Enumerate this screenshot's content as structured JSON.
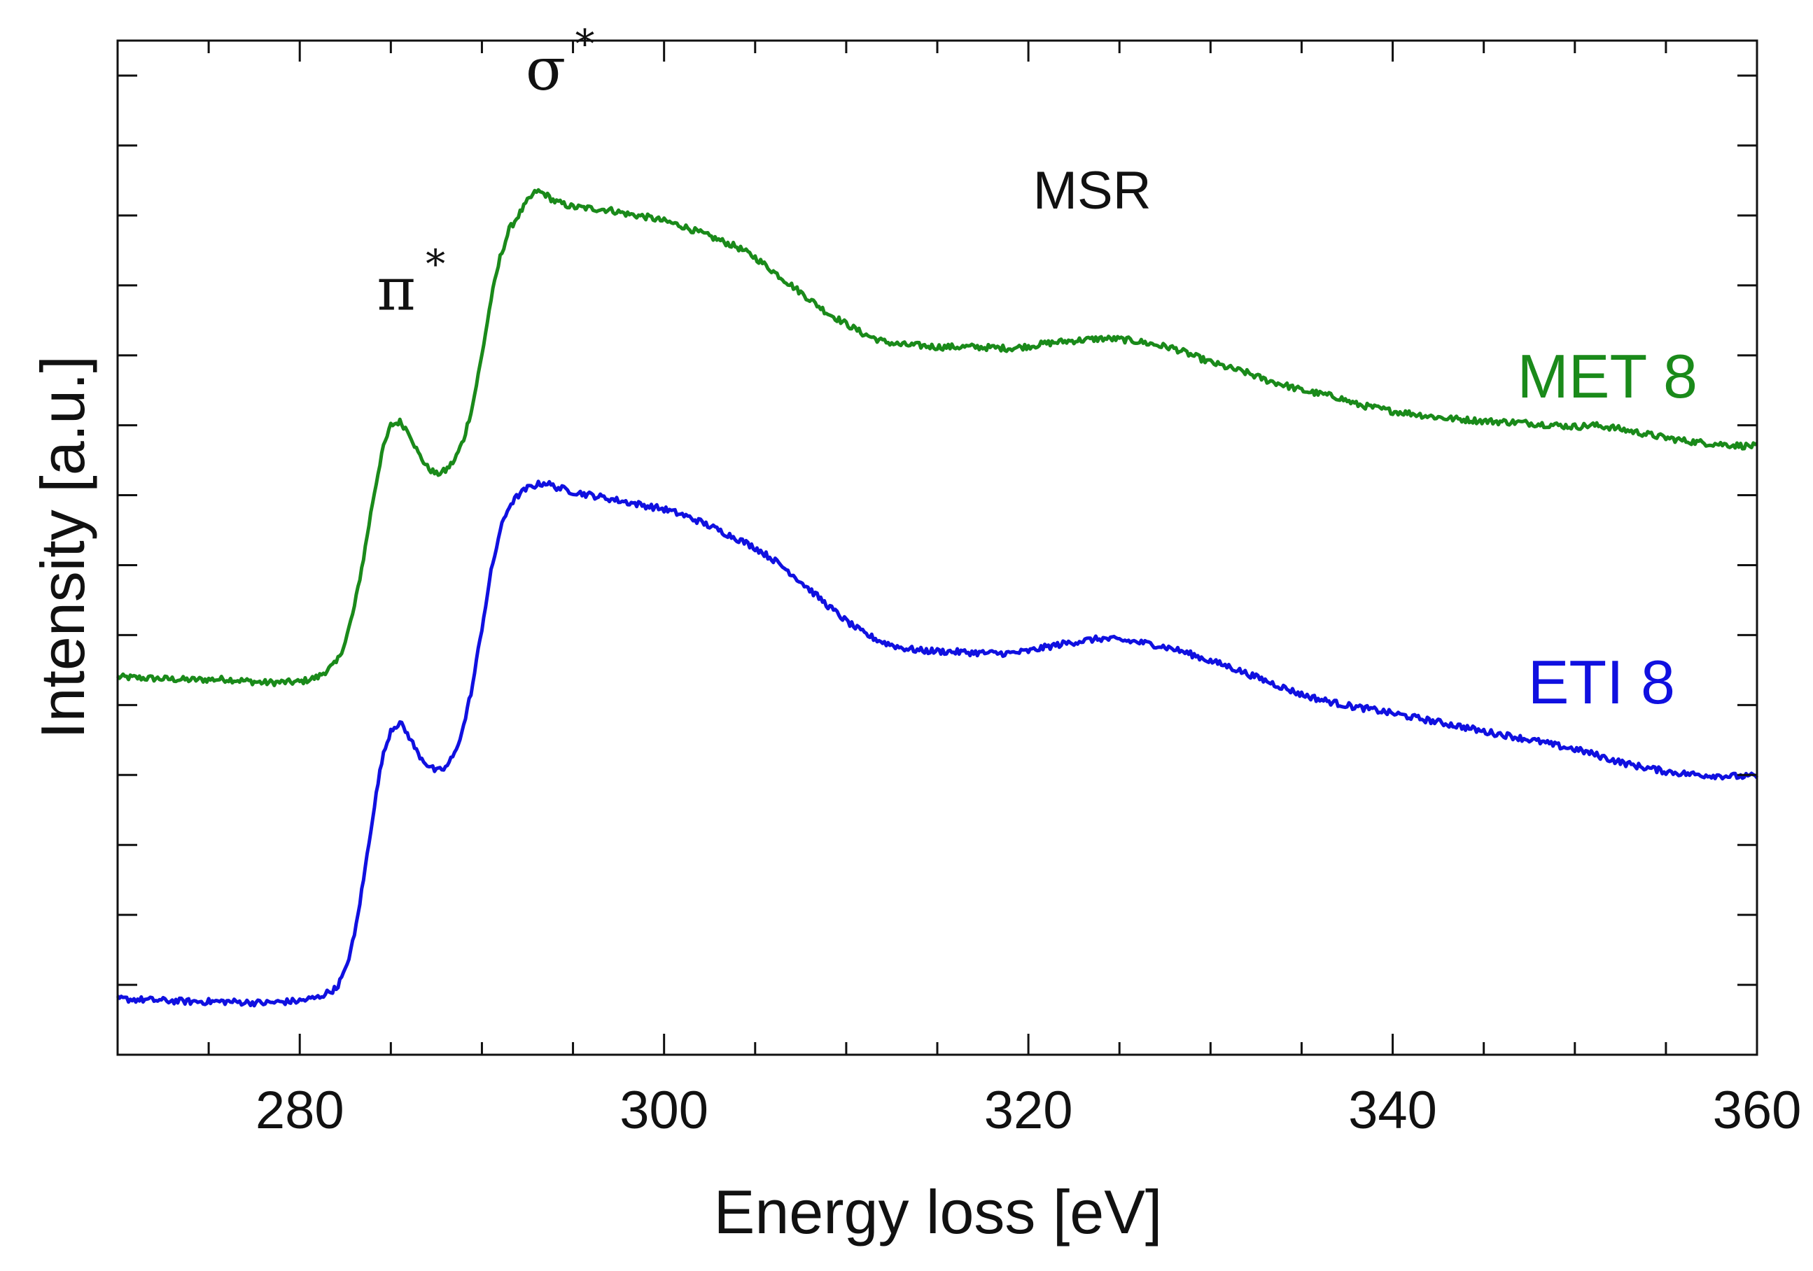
{
  "chart_data": {
    "type": "line",
    "title": "",
    "xlabel": "Energy loss [eV]",
    "ylabel": "Intensity [a.u.]",
    "xlim": [
      270,
      360
    ],
    "ylim": [
      0,
      14.5
    ],
    "x_ticks": [
      280,
      300,
      320,
      340,
      360
    ],
    "x_minor_step": 5,
    "y_ticks": [
      1,
      2,
      3,
      4,
      5,
      6,
      7,
      8,
      9,
      10,
      11,
      12,
      13,
      14
    ],
    "y_tick_labels_shown": false,
    "grid": false,
    "annotations": [
      {
        "name": "pi-star-label",
        "symbol": "π",
        "superscript": "*",
        "x": 285.3,
        "y": 10.65
      },
      {
        "name": "sigma-star-label",
        "symbol": "σ",
        "superscript": "*",
        "x": 293.5,
        "y": 13.8
      },
      {
        "name": "msr-label",
        "text": "MSR",
        "x": 323.5,
        "y": 12.1
      }
    ],
    "series": [
      {
        "name": "MET 8",
        "color": "#1a8a1a",
        "label_position": "right, above curve",
        "points": [
          [
            270.0,
            5.4
          ],
          [
            272.0,
            5.38
          ],
          [
            274.0,
            5.36
          ],
          [
            276.0,
            5.37
          ],
          [
            278.0,
            5.32
          ],
          [
            280.0,
            5.33
          ],
          [
            281.0,
            5.4
          ],
          [
            282.0,
            5.6
          ],
          [
            282.5,
            5.9
          ],
          [
            283.0,
            6.4
          ],
          [
            283.5,
            7.1
          ],
          [
            284.0,
            7.9
          ],
          [
            284.5,
            8.6
          ],
          [
            285.0,
            9.0
          ],
          [
            285.5,
            9.05
          ],
          [
            286.0,
            8.9
          ],
          [
            286.5,
            8.6
          ],
          [
            287.0,
            8.4
          ],
          [
            287.5,
            8.3
          ],
          [
            288.0,
            8.35
          ],
          [
            288.5,
            8.5
          ],
          [
            289.0,
            8.8
          ],
          [
            289.5,
            9.3
          ],
          [
            290.0,
            10.0
          ],
          [
            290.5,
            10.8
          ],
          [
            291.0,
            11.4
          ],
          [
            291.5,
            11.8
          ],
          [
            292.0,
            12.0
          ],
          [
            292.5,
            12.2
          ],
          [
            293.0,
            12.35
          ],
          [
            293.5,
            12.3
          ],
          [
            294.0,
            12.2
          ],
          [
            295.0,
            12.12
          ],
          [
            296.0,
            12.1
          ],
          [
            297.0,
            12.08
          ],
          [
            298.0,
            12.02
          ],
          [
            299.0,
            11.98
          ],
          [
            300.0,
            11.92
          ],
          [
            301.0,
            11.85
          ],
          [
            302.0,
            11.75
          ],
          [
            303.0,
            11.65
          ],
          [
            304.0,
            11.55
          ],
          [
            305.0,
            11.4
          ],
          [
            306.0,
            11.2
          ],
          [
            307.0,
            11.0
          ],
          [
            308.0,
            10.8
          ],
          [
            309.0,
            10.6
          ],
          [
            310.0,
            10.45
          ],
          [
            311.0,
            10.3
          ],
          [
            312.0,
            10.2
          ],
          [
            313.0,
            10.15
          ],
          [
            314.0,
            10.14
          ],
          [
            315.0,
            10.12
          ],
          [
            316.0,
            10.12
          ],
          [
            317.0,
            10.12
          ],
          [
            318.0,
            10.11
          ],
          [
            319.0,
            10.1
          ],
          [
            320.0,
            10.13
          ],
          [
            321.0,
            10.17
          ],
          [
            322.0,
            10.2
          ],
          [
            323.0,
            10.22
          ],
          [
            324.0,
            10.24
          ],
          [
            325.0,
            10.23
          ],
          [
            326.0,
            10.2
          ],
          [
            327.0,
            10.15
          ],
          [
            328.0,
            10.1
          ],
          [
            329.0,
            10.0
          ],
          [
            330.0,
            9.9
          ],
          [
            331.0,
            9.82
          ],
          [
            332.0,
            9.75
          ],
          [
            333.0,
            9.65
          ],
          [
            334.0,
            9.58
          ],
          [
            335.0,
            9.5
          ],
          [
            336.0,
            9.45
          ],
          [
            337.0,
            9.4
          ],
          [
            338.0,
            9.3
          ],
          [
            339.0,
            9.25
          ],
          [
            340.0,
            9.2
          ],
          [
            341.0,
            9.17
          ],
          [
            342.0,
            9.13
          ],
          [
            343.0,
            9.1
          ],
          [
            344.0,
            9.08
          ],
          [
            345.0,
            9.06
          ],
          [
            346.0,
            9.05
          ],
          [
            347.0,
            9.04
          ],
          [
            348.0,
            9.02
          ],
          [
            349.0,
            9.0
          ],
          [
            350.0,
            8.98
          ],
          [
            351.0,
            9.0
          ],
          [
            352.0,
            8.97
          ],
          [
            353.0,
            8.92
          ],
          [
            354.0,
            8.87
          ],
          [
            355.0,
            8.82
          ],
          [
            356.0,
            8.78
          ],
          [
            357.0,
            8.75
          ],
          [
            358.0,
            8.73
          ],
          [
            359.0,
            8.71
          ],
          [
            360.0,
            8.7
          ]
        ]
      },
      {
        "name": "ETI 8",
        "color": "#1010e0",
        "label_position": "right, above curve",
        "points": [
          [
            270.0,
            0.8
          ],
          [
            272.0,
            0.78
          ],
          [
            274.0,
            0.76
          ],
          [
            276.0,
            0.76
          ],
          [
            278.0,
            0.74
          ],
          [
            280.0,
            0.77
          ],
          [
            281.0,
            0.82
          ],
          [
            282.0,
            0.95
          ],
          [
            282.5,
            1.2
          ],
          [
            283.0,
            1.7
          ],
          [
            283.5,
            2.5
          ],
          [
            284.0,
            3.4
          ],
          [
            284.5,
            4.2
          ],
          [
            285.0,
            4.65
          ],
          [
            285.5,
            4.75
          ],
          [
            286.0,
            4.55
          ],
          [
            286.5,
            4.3
          ],
          [
            287.0,
            4.15
          ],
          [
            287.5,
            4.05
          ],
          [
            288.0,
            4.1
          ],
          [
            288.5,
            4.3
          ],
          [
            289.0,
            4.7
          ],
          [
            289.5,
            5.3
          ],
          [
            290.0,
            6.1
          ],
          [
            290.5,
            6.9
          ],
          [
            291.0,
            7.5
          ],
          [
            291.5,
            7.85
          ],
          [
            292.0,
            8.0
          ],
          [
            292.5,
            8.1
          ],
          [
            293.0,
            8.15
          ],
          [
            293.5,
            8.18
          ],
          [
            294.0,
            8.12
          ],
          [
            295.0,
            8.05
          ],
          [
            296.0,
            8.0
          ],
          [
            297.0,
            7.95
          ],
          [
            298.0,
            7.9
          ],
          [
            299.0,
            7.85
          ],
          [
            300.0,
            7.8
          ],
          [
            301.0,
            7.72
          ],
          [
            302.0,
            7.62
          ],
          [
            303.0,
            7.5
          ],
          [
            304.0,
            7.38
          ],
          [
            305.0,
            7.25
          ],
          [
            306.0,
            7.08
          ],
          [
            307.0,
            6.88
          ],
          [
            308.0,
            6.65
          ],
          [
            309.0,
            6.42
          ],
          [
            310.0,
            6.2
          ],
          [
            311.0,
            6.02
          ],
          [
            312.0,
            5.9
          ],
          [
            313.0,
            5.82
          ],
          [
            314.0,
            5.78
          ],
          [
            315.0,
            5.77
          ],
          [
            316.0,
            5.76
          ],
          [
            317.0,
            5.75
          ],
          [
            318.0,
            5.74
          ],
          [
            319.0,
            5.74
          ],
          [
            320.0,
            5.77
          ],
          [
            321.0,
            5.83
          ],
          [
            322.0,
            5.88
          ],
          [
            323.0,
            5.92
          ],
          [
            324.0,
            5.95
          ],
          [
            325.0,
            5.93
          ],
          [
            326.0,
            5.9
          ],
          [
            327.0,
            5.86
          ],
          [
            328.0,
            5.8
          ],
          [
            329.0,
            5.72
          ],
          [
            330.0,
            5.63
          ],
          [
            331.0,
            5.55
          ],
          [
            332.0,
            5.45
          ],
          [
            333.0,
            5.35
          ],
          [
            334.0,
            5.25
          ],
          [
            335.0,
            5.15
          ],
          [
            336.0,
            5.08
          ],
          [
            337.0,
            5.02
          ],
          [
            338.0,
            4.97
          ],
          [
            339.0,
            4.93
          ],
          [
            340.0,
            4.88
          ],
          [
            341.0,
            4.83
          ],
          [
            342.0,
            4.78
          ],
          [
            343.0,
            4.73
          ],
          [
            344.0,
            4.68
          ],
          [
            345.0,
            4.62
          ],
          [
            346.0,
            4.58
          ],
          [
            347.0,
            4.53
          ],
          [
            348.0,
            4.48
          ],
          [
            349.0,
            4.42
          ],
          [
            350.0,
            4.37
          ],
          [
            351.0,
            4.3
          ],
          [
            352.0,
            4.22
          ],
          [
            353.0,
            4.15
          ],
          [
            354.0,
            4.1
          ],
          [
            355.0,
            4.05
          ],
          [
            356.0,
            4.02
          ],
          [
            357.0,
            4.0
          ],
          [
            358.0,
            3.99
          ],
          [
            359.0,
            3.98
          ],
          [
            360.0,
            3.98
          ]
        ]
      }
    ]
  }
}
